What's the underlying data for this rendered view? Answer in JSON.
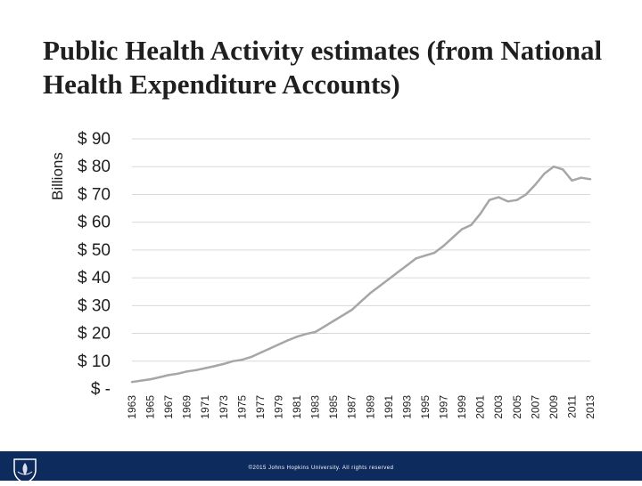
{
  "slide": {
    "title": "Public Health Activity estimates (from National Health Expenditure Accounts)",
    "copyright": "©2015 Johns Hopkins University. All rights reserved"
  },
  "colors": {
    "line": "#a6a6a6",
    "grid": "#d9d9d9",
    "text": "#1f1f1f",
    "footer": "#0d2b5c"
  },
  "chart_data": {
    "type": "line",
    "title": "",
    "xlabel": "",
    "ylabel": "Billions",
    "ylim": [
      0,
      90
    ],
    "grid": true,
    "y_ticks": [
      {
        "value": 0,
        "label": "$ -"
      },
      {
        "value": 10,
        "label": "$ 10"
      },
      {
        "value": 20,
        "label": "$ 20"
      },
      {
        "value": 30,
        "label": "$ 30"
      },
      {
        "value": 40,
        "label": "$ 40"
      },
      {
        "value": 50,
        "label": "$ 50"
      },
      {
        "value": 60,
        "label": "$ 60"
      },
      {
        "value": 70,
        "label": "$ 70"
      },
      {
        "value": 80,
        "label": "$ 80"
      },
      {
        "value": 90,
        "label": "$ 90"
      }
    ],
    "x_tick_labels": [
      "1963",
      "1965",
      "1967",
      "1969",
      "1971",
      "1973",
      "1975",
      "1977",
      "1979",
      "1981",
      "1983",
      "1985",
      "1987",
      "1989",
      "1991",
      "1993",
      "1995",
      "1997",
      "1999",
      "2001",
      "2003",
      "2005",
      "2007",
      "2009",
      "2011",
      "2013"
    ],
    "series": [
      {
        "name": "Public Health Activity",
        "x": [
          1963,
          1964,
          1965,
          1966,
          1967,
          1968,
          1969,
          1970,
          1971,
          1972,
          1973,
          1974,
          1975,
          1976,
          1977,
          1978,
          1979,
          1980,
          1981,
          1982,
          1983,
          1984,
          1985,
          1986,
          1987,
          1988,
          1989,
          1990,
          1991,
          1992,
          1993,
          1994,
          1995,
          1996,
          1997,
          1998,
          1999,
          2000,
          2001,
          2002,
          2003,
          2004,
          2005,
          2006,
          2007,
          2008,
          2009,
          2010,
          2011,
          2012,
          2013
        ],
        "values": [
          2.5,
          3,
          3.5,
          4.2,
          5,
          5.5,
          6.3,
          6.8,
          7.5,
          8.2,
          9,
          10,
          10.5,
          11.5,
          13,
          14.5,
          16,
          17.5,
          18.8,
          19.8,
          20.5,
          22.5,
          24.5,
          26.5,
          28.5,
          31.5,
          34.5,
          37,
          39.5,
          42,
          44.5,
          47,
          48,
          49,
          51.5,
          54.5,
          57.5,
          59,
          63,
          68,
          69,
          67.5,
          68,
          70,
          73.5,
          77.5,
          80,
          79,
          75,
          76,
          75.5
        ]
      }
    ]
  }
}
